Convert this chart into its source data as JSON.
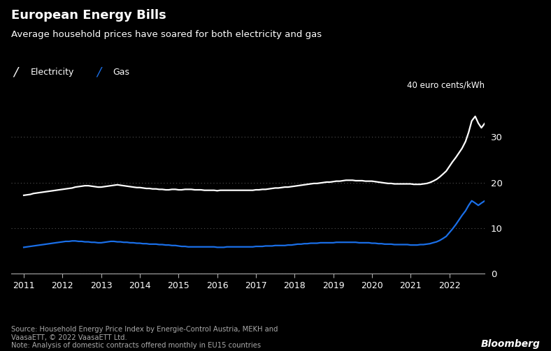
{
  "title": "European Energy Bills",
  "subtitle": "Average household prices have soared for both electricity and gas",
  "unit_label": "40 euro cents/kWh",
  "source_text": "Source: Household Energy Price Index by Energie-Control Austria, MEKH and\nVaasaETT, © 2022 VaasaETT Ltd.\nNote: Analysis of domestic contracts offered monthly in EU15 countries",
  "bloomberg_text": "Bloomberg",
  "background_color": "#000000",
  "text_color": "#ffffff",
  "electricity_color": "#ffffff",
  "gas_color": "#1a6fe8",
  "grid_color": "#555555",
  "axis_color": "#aaaaaa",
  "source_color": "#aaaaaa",
  "legend_elec": "Electricity",
  "legend_gas": "Gas",
  "ylim": [
    0,
    40
  ],
  "yticks": [
    0,
    10,
    20,
    30
  ],
  "xlim_start": 2010.67,
  "xlim_end": 2022.92,
  "xtick_positions": [
    2011,
    2012,
    2013,
    2014,
    2015,
    2016,
    2017,
    2018,
    2019,
    2020,
    2021,
    2022
  ],
  "xtick_labels": [
    "2011",
    "2012",
    "2013",
    "2014",
    "2015",
    "2016",
    "2017",
    "2018",
    "2019",
    "2020",
    "2021",
    "2022"
  ],
  "electricity_x": [
    2011.0,
    2011.08,
    2011.17,
    2011.25,
    2011.33,
    2011.42,
    2011.5,
    2011.58,
    2011.67,
    2011.75,
    2011.83,
    2011.92,
    2012.0,
    2012.08,
    2012.17,
    2012.25,
    2012.33,
    2012.42,
    2012.5,
    2012.58,
    2012.67,
    2012.75,
    2012.83,
    2012.92,
    2013.0,
    2013.08,
    2013.17,
    2013.25,
    2013.33,
    2013.42,
    2013.5,
    2013.58,
    2013.67,
    2013.75,
    2013.83,
    2013.92,
    2014.0,
    2014.08,
    2014.17,
    2014.25,
    2014.33,
    2014.42,
    2014.5,
    2014.58,
    2014.67,
    2014.75,
    2014.83,
    2014.92,
    2015.0,
    2015.08,
    2015.17,
    2015.25,
    2015.33,
    2015.42,
    2015.5,
    2015.58,
    2015.67,
    2015.75,
    2015.83,
    2015.92,
    2016.0,
    2016.08,
    2016.17,
    2016.25,
    2016.33,
    2016.42,
    2016.5,
    2016.58,
    2016.67,
    2016.75,
    2016.83,
    2016.92,
    2017.0,
    2017.08,
    2017.17,
    2017.25,
    2017.33,
    2017.42,
    2017.5,
    2017.58,
    2017.67,
    2017.75,
    2017.83,
    2017.92,
    2018.0,
    2018.08,
    2018.17,
    2018.25,
    2018.33,
    2018.42,
    2018.5,
    2018.58,
    2018.67,
    2018.75,
    2018.83,
    2018.92,
    2019.0,
    2019.08,
    2019.17,
    2019.25,
    2019.33,
    2019.42,
    2019.5,
    2019.58,
    2019.67,
    2019.75,
    2019.83,
    2019.92,
    2020.0,
    2020.08,
    2020.17,
    2020.25,
    2020.33,
    2020.42,
    2020.5,
    2020.58,
    2020.67,
    2020.75,
    2020.83,
    2020.92,
    2021.0,
    2021.08,
    2021.17,
    2021.25,
    2021.33,
    2021.42,
    2021.5,
    2021.58,
    2021.67,
    2021.75,
    2021.83,
    2021.92,
    2022.0,
    2022.08,
    2022.17,
    2022.25,
    2022.33,
    2022.42,
    2022.5,
    2022.58,
    2022.67,
    2022.75,
    2022.83,
    2022.92
  ],
  "electricity_y": [
    17.2,
    17.3,
    17.4,
    17.6,
    17.7,
    17.8,
    17.9,
    18.0,
    18.1,
    18.2,
    18.3,
    18.4,
    18.5,
    18.6,
    18.7,
    18.8,
    19.0,
    19.1,
    19.2,
    19.3,
    19.3,
    19.2,
    19.1,
    19.0,
    19.0,
    19.1,
    19.2,
    19.3,
    19.4,
    19.5,
    19.4,
    19.3,
    19.2,
    19.1,
    19.0,
    18.9,
    18.9,
    18.8,
    18.7,
    18.7,
    18.6,
    18.6,
    18.5,
    18.5,
    18.4,
    18.4,
    18.5,
    18.5,
    18.4,
    18.4,
    18.5,
    18.5,
    18.5,
    18.4,
    18.4,
    18.4,
    18.3,
    18.3,
    18.3,
    18.3,
    18.2,
    18.3,
    18.3,
    18.3,
    18.3,
    18.3,
    18.3,
    18.3,
    18.3,
    18.3,
    18.3,
    18.3,
    18.4,
    18.4,
    18.5,
    18.5,
    18.6,
    18.7,
    18.8,
    18.8,
    18.9,
    19.0,
    19.0,
    19.1,
    19.2,
    19.3,
    19.4,
    19.5,
    19.6,
    19.7,
    19.8,
    19.8,
    19.9,
    20.0,
    20.1,
    20.1,
    20.2,
    20.3,
    20.3,
    20.4,
    20.5,
    20.5,
    20.5,
    20.4,
    20.4,
    20.4,
    20.3,
    20.3,
    20.3,
    20.2,
    20.1,
    20.0,
    19.9,
    19.8,
    19.8,
    19.7,
    19.7,
    19.7,
    19.7,
    19.7,
    19.7,
    19.6,
    19.6,
    19.6,
    19.7,
    19.8,
    20.0,
    20.3,
    20.7,
    21.2,
    21.8,
    22.5,
    23.5,
    24.5,
    25.5,
    26.5,
    27.5,
    29.0,
    31.0,
    33.5,
    34.5,
    33.0,
    32.0,
    33.0
  ],
  "gas_x": [
    2011.0,
    2011.08,
    2011.17,
    2011.25,
    2011.33,
    2011.42,
    2011.5,
    2011.58,
    2011.67,
    2011.75,
    2011.83,
    2011.92,
    2012.0,
    2012.08,
    2012.17,
    2012.25,
    2012.33,
    2012.42,
    2012.5,
    2012.58,
    2012.67,
    2012.75,
    2012.83,
    2012.92,
    2013.0,
    2013.08,
    2013.17,
    2013.25,
    2013.33,
    2013.42,
    2013.5,
    2013.58,
    2013.67,
    2013.75,
    2013.83,
    2013.92,
    2014.0,
    2014.08,
    2014.17,
    2014.25,
    2014.33,
    2014.42,
    2014.5,
    2014.58,
    2014.67,
    2014.75,
    2014.83,
    2014.92,
    2015.0,
    2015.08,
    2015.17,
    2015.25,
    2015.33,
    2015.42,
    2015.5,
    2015.58,
    2015.67,
    2015.75,
    2015.83,
    2015.92,
    2016.0,
    2016.08,
    2016.17,
    2016.25,
    2016.33,
    2016.42,
    2016.5,
    2016.58,
    2016.67,
    2016.75,
    2016.83,
    2016.92,
    2017.0,
    2017.08,
    2017.17,
    2017.25,
    2017.33,
    2017.42,
    2017.5,
    2017.58,
    2017.67,
    2017.75,
    2017.83,
    2017.92,
    2018.0,
    2018.08,
    2018.17,
    2018.25,
    2018.33,
    2018.42,
    2018.5,
    2018.58,
    2018.67,
    2018.75,
    2018.83,
    2018.92,
    2019.0,
    2019.08,
    2019.17,
    2019.25,
    2019.33,
    2019.42,
    2019.5,
    2019.58,
    2019.67,
    2019.75,
    2019.83,
    2019.92,
    2020.0,
    2020.08,
    2020.17,
    2020.25,
    2020.33,
    2020.42,
    2020.5,
    2020.58,
    2020.67,
    2020.75,
    2020.83,
    2020.92,
    2021.0,
    2021.08,
    2021.17,
    2021.25,
    2021.33,
    2021.42,
    2021.5,
    2021.58,
    2021.67,
    2021.75,
    2021.83,
    2021.92,
    2022.0,
    2022.08,
    2022.17,
    2022.25,
    2022.33,
    2022.42,
    2022.5,
    2022.58,
    2022.67,
    2022.75,
    2022.83,
    2022.92
  ],
  "gas_y": [
    5.8,
    5.9,
    6.0,
    6.1,
    6.2,
    6.3,
    6.4,
    6.5,
    6.6,
    6.7,
    6.8,
    6.9,
    7.0,
    7.1,
    7.1,
    7.2,
    7.2,
    7.1,
    7.1,
    7.0,
    7.0,
    6.9,
    6.9,
    6.8,
    6.8,
    6.9,
    7.0,
    7.1,
    7.1,
    7.0,
    7.0,
    6.9,
    6.9,
    6.8,
    6.8,
    6.7,
    6.7,
    6.6,
    6.6,
    6.5,
    6.5,
    6.5,
    6.4,
    6.4,
    6.3,
    6.3,
    6.2,
    6.2,
    6.1,
    6.0,
    6.0,
    5.9,
    5.9,
    5.9,
    5.9,
    5.9,
    5.9,
    5.9,
    5.9,
    5.9,
    5.8,
    5.8,
    5.8,
    5.9,
    5.9,
    5.9,
    5.9,
    5.9,
    5.9,
    5.9,
    5.9,
    5.9,
    6.0,
    6.0,
    6.0,
    6.1,
    6.1,
    6.1,
    6.2,
    6.2,
    6.2,
    6.2,
    6.3,
    6.3,
    6.4,
    6.5,
    6.5,
    6.6,
    6.6,
    6.7,
    6.7,
    6.7,
    6.8,
    6.8,
    6.8,
    6.8,
    6.8,
    6.9,
    6.9,
    6.9,
    6.9,
    6.9,
    6.9,
    6.9,
    6.8,
    6.8,
    6.8,
    6.8,
    6.7,
    6.7,
    6.6,
    6.6,
    6.5,
    6.5,
    6.5,
    6.4,
    6.4,
    6.4,
    6.4,
    6.4,
    6.3,
    6.3,
    6.3,
    6.4,
    6.4,
    6.5,
    6.6,
    6.8,
    7.0,
    7.3,
    7.7,
    8.2,
    9.0,
    9.8,
    10.8,
    11.8,
    12.8,
    13.8,
    15.0,
    16.0,
    15.5,
    15.0,
    15.5,
    16.0
  ]
}
